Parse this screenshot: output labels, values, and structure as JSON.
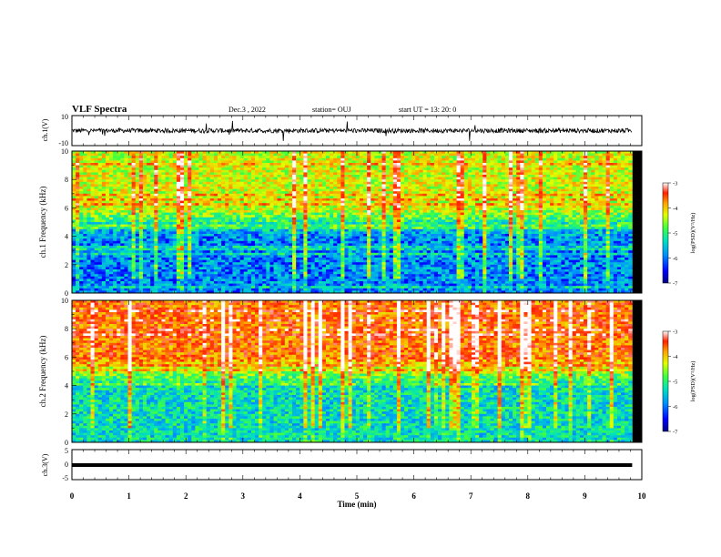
{
  "header": {
    "title": "VLF Spectra",
    "date": "Dec.3 , 2022",
    "station": "station= OUJ",
    "start": "start UT = 13: 20: 0"
  },
  "colors": {
    "colormap": [
      "#000080",
      "#0000ff",
      "#0090ff",
      "#00e0c0",
      "#40ff40",
      "#e0ff00",
      "#ffa000",
      "#ff2000",
      "#ffffff"
    ],
    "trace": "#000000"
  },
  "chart_data": [
    {
      "type": "line",
      "panel": "waveform-ch1",
      "ylabel": "ch.1(V)",
      "ylim": [
        -10,
        10
      ],
      "yticks": [
        "10",
        "-10"
      ],
      "series": [
        {
          "description": "noisy waveform near 0 V with spikes",
          "amplitude_v": 1.5
        }
      ]
    },
    {
      "type": "heatmap",
      "panel": "spectrogram-ch1",
      "ylabel": "ch.1 Frequency (kHz)",
      "ylim": [
        0,
        10
      ],
      "yticks": [
        "0",
        "2",
        "4",
        "6",
        "8",
        "10"
      ],
      "colorbar": {
        "label": "log(PSD)(V²/Hz)",
        "range": [
          -7,
          -3
        ],
        "ticks": [
          "-3",
          "-4",
          "-5",
          "-6",
          "-7"
        ]
      },
      "intensity_above_6khz": -4.5,
      "intensity_below_4khz": -6.0
    },
    {
      "type": "heatmap",
      "panel": "spectrogram-ch2",
      "ylabel": "ch.2 Frequency (kHz)",
      "ylim": [
        0,
        10
      ],
      "yticks": [
        "0",
        "2",
        "4",
        "6",
        "8",
        "10"
      ],
      "colorbar": {
        "label": "log(PSD)(V²/Hz)",
        "range": [
          -7,
          -3
        ],
        "ticks": [
          "-3",
          "-4",
          "-5",
          "-6",
          "-7"
        ]
      },
      "intensity_above_6khz": -3.8,
      "intensity_below_4khz": -5.5
    },
    {
      "type": "line",
      "panel": "waveform-ch3",
      "ylabel": "ch.3(V)",
      "ylim": [
        -5,
        5
      ],
      "yticks": [
        "5",
        "0",
        "-5"
      ],
      "series": [
        {
          "description": "flat trace near -1 V",
          "level_v": -1
        }
      ]
    }
  ],
  "xaxis": {
    "label": "Time (min)",
    "xlim": [
      0,
      10
    ],
    "data_end_min": 9.83,
    "ticks": [
      "0",
      "1",
      "2",
      "3",
      "4",
      "5",
      "6",
      "7",
      "8",
      "9",
      "10"
    ]
  }
}
